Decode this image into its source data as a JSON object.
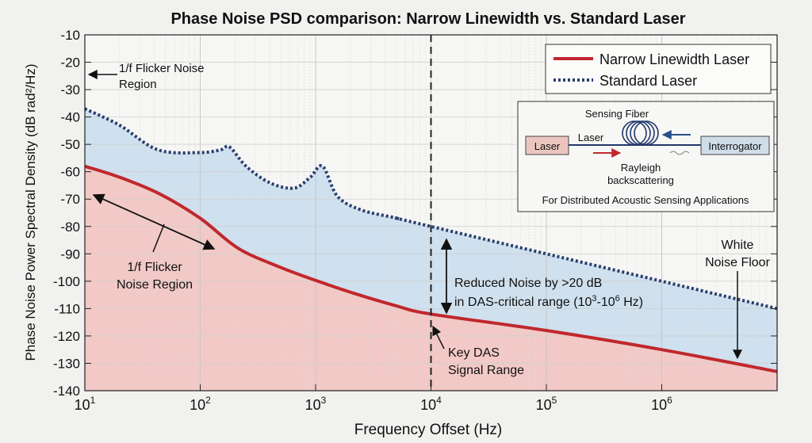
{
  "chart_data": {
    "type": "line",
    "title": "Phase Noise PSD comparison: Narrow Linewidth vs. Standard Laser",
    "xlabel": "Frequency Offset (Hz)",
    "ylabel": "Phase Noise Power Spectral Density (dB rad²/Hz)",
    "xscale": "log",
    "xlim": [
      10,
      10000000
    ],
    "ylim": [
      -140,
      -10
    ],
    "xticks": [
      {
        "v": 10,
        "b": "10",
        "e": "1"
      },
      {
        "v": 100,
        "b": "10",
        "e": "2"
      },
      {
        "v": 1000,
        "b": "10",
        "e": "3"
      },
      {
        "v": 10000,
        "b": "10",
        "e": "4"
      },
      {
        "v": 100000,
        "b": "10",
        "e": "5"
      },
      {
        "v": 1000000,
        "b": "10",
        "e": "6"
      }
    ],
    "yticks": [
      -10,
      -20,
      -30,
      -40,
      -50,
      -60,
      -70,
      -80,
      -90,
      -100,
      -110,
      -120,
      -130,
      -140
    ],
    "grid": true,
    "legend_placement": "top-right",
    "series": [
      {
        "name": "Narrow Linewidth Laser",
        "color": "#c0282d",
        "style": "solid",
        "fill": "#f2c9c6",
        "x": [
          10,
          20,
          44,
          100,
          214,
          500,
          1050,
          2000,
          5000,
          10000,
          100000,
          1000000,
          10000000
        ],
        "y": [
          -58,
          -62,
          -68,
          -77,
          -88,
          -95,
          -100,
          -104,
          -109,
          -112,
          -118,
          -125,
          -133
        ]
      },
      {
        "name": "Standard Laser",
        "color": "#2a3f6e",
        "style": "dotted",
        "fill": "#cfe0ee",
        "x": [
          10,
          20,
          43,
          100,
          150,
          180,
          250,
          400,
          650,
          900,
          1150,
          1550,
          2500,
          5100,
          10000,
          10000000
        ],
        "y": [
          -37,
          -43,
          -52,
          -53,
          -52,
          -51,
          -58,
          -64,
          -66,
          -62,
          -58,
          -69,
          -74,
          -77,
          -80,
          -110
        ]
      }
    ],
    "annotations": {
      "top_left": [
        "1/f Flicker Noise",
        "Region"
      ],
      "bottom_left": [
        "1/f Flicker",
        "Noise Region"
      ],
      "reduced": [
        "Reduced Noise by >20 dB",
        "in DAS-critical range (10",
        "3",
        "-10",
        "6",
        " Hz)"
      ],
      "key_das": [
        "Key DAS",
        "Signal Range"
      ],
      "white": [
        "White",
        "Noise Floor"
      ]
    },
    "inset": {
      "sensing_fiber": "Sensing Fiber",
      "laser_box": "Laser",
      "laser_label": "Laser",
      "interrogator": "Interrogator",
      "rayleigh": [
        "Rayleigh",
        "backscattering"
      ],
      "caption": "For Distributed Acoustic Sensing Applications"
    }
  }
}
